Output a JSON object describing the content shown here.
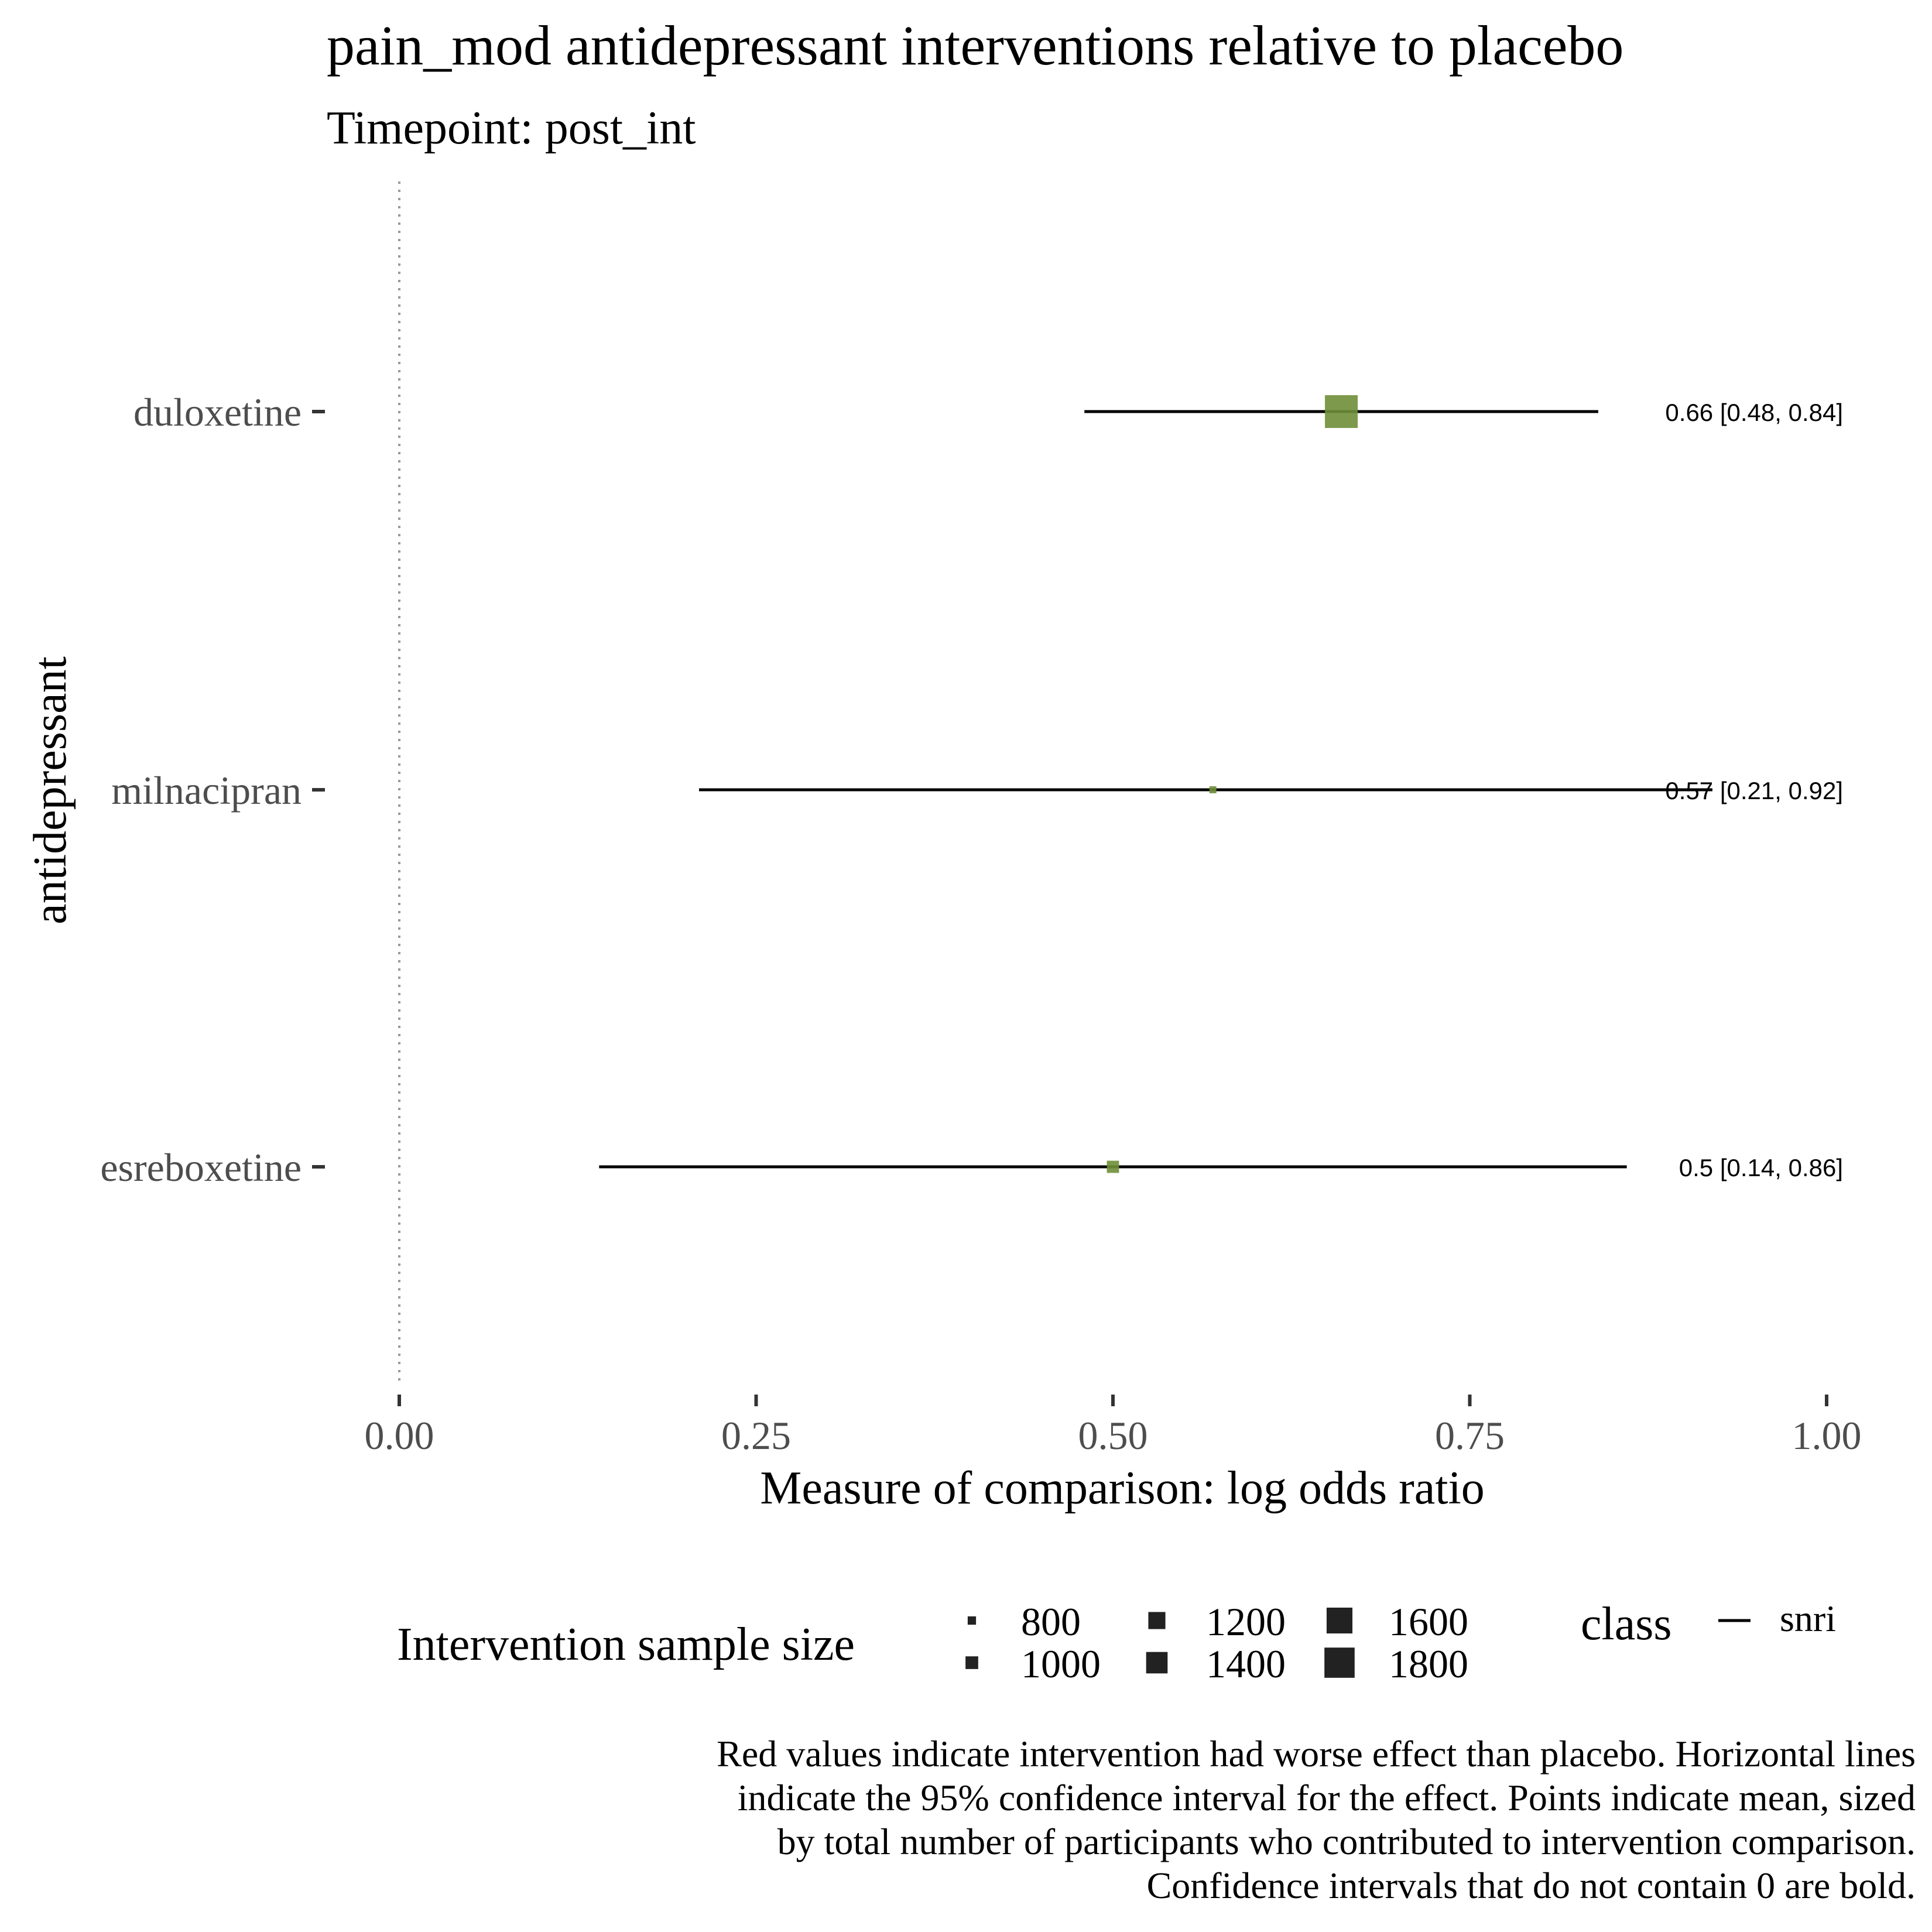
{
  "chart_data": {
    "type": "forest",
    "title": "pain_mod antidepressant interventions relative to placebo",
    "subtitle": "Timepoint: post_int",
    "xlabel": "Measure of comparison: log odds ratio",
    "ylabel": "antidepressant",
    "xlim": [
      0,
      1
    ],
    "x_ticks": [
      "0.00",
      "0.25",
      "0.50",
      "0.75",
      "1.00"
    ],
    "x_tick_values": [
      0,
      0.25,
      0.5,
      0.75,
      1.0
    ],
    "reference_line": 0,
    "categories": [
      "duloxetine",
      "milnacipran",
      "esreboxetine"
    ],
    "series": [
      {
        "class": "snri",
        "points": [
          {
            "label": "duloxetine",
            "mean": 0.66,
            "lower": 0.48,
            "upper": 0.84,
            "n": 1800,
            "text": "0.66 [0.48, 0.84]"
          },
          {
            "label": "milnacipran",
            "mean": 0.57,
            "lower": 0.21,
            "upper": 0.92,
            "n": 800,
            "text": "0.57 [0.21, 0.92]"
          },
          {
            "label": "esreboxetine",
            "mean": 0.5,
            "lower": 0.14,
            "upper": 0.86,
            "n": 1000,
            "text": "0.5 [0.14, 0.86]"
          }
        ]
      }
    ],
    "point_color": "#6f8f38",
    "legend": {
      "size_title": "Intervention sample size",
      "size_values": [
        800,
        1000,
        1200,
        1400,
        1600,
        1800
      ],
      "size_labels": [
        "800",
        "1000",
        "1200",
        "1400",
        "1600",
        "1800"
      ],
      "class_title": "class",
      "class_label": "snri",
      "placement": "bottom"
    },
    "caption": [
      "Red values indicate intervention had worse effect than placebo. Horizontal lines",
      "indicate the 95% confidence interval for the effect. Points indicate mean, sized",
      "by total number of participants who contributed to intervention comparison.",
      "Confidence intervals that do not contain 0 are bold."
    ],
    "grid": false
  }
}
